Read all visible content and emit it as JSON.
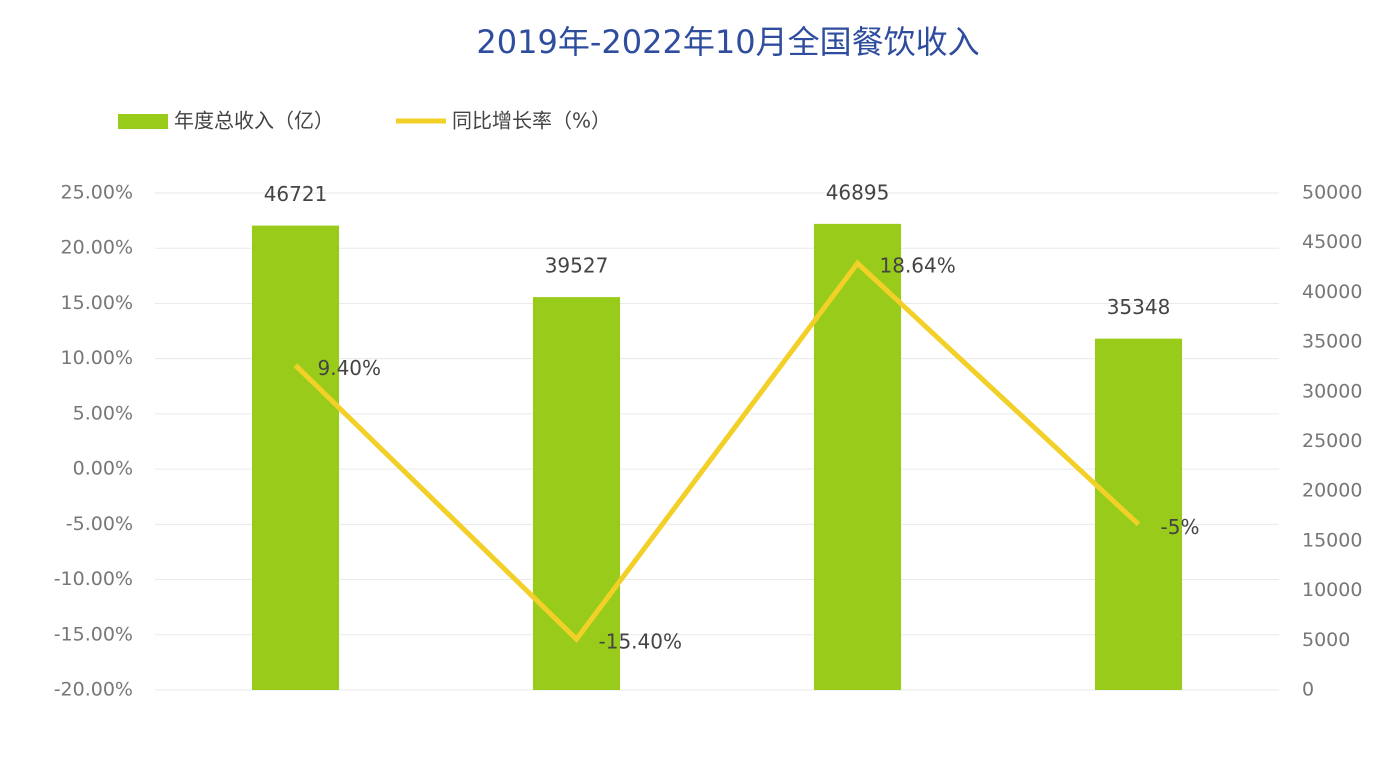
{
  "chart_data": {
    "type": "bar_line",
    "title": "2019年-2022年10月全国餐饮收入",
    "categories": [
      null,
      null,
      null,
      null
    ],
    "series": [
      {
        "name": "年度总收入（亿）",
        "type": "bar",
        "color": "#99cc1a",
        "axis": "y2",
        "values": [
          46721,
          39527,
          46895,
          35348
        ]
      },
      {
        "name": "同比增长率（%）",
        "type": "line",
        "color": "#f2d027",
        "axis": "y",
        "values": [
          9.4,
          -15.4,
          18.64,
          -5
        ],
        "value_labels": [
          "9.40%",
          "-15.40%",
          "18.64%",
          "-5%"
        ]
      }
    ],
    "ylim": [
      -20,
      25
    ],
    "yticks": [
      {
        "value": -20,
        "label": "-20.00%"
      },
      {
        "value": -15,
        "label": "-15.00%"
      },
      {
        "value": -10,
        "label": "-10.00%"
      },
      {
        "value": -5,
        "label": "-5.00%"
      },
      {
        "value": 0,
        "label": "0.00%"
      },
      {
        "value": 5,
        "label": "5.00%"
      },
      {
        "value": 10,
        "label": "10.00%"
      },
      {
        "value": 15,
        "label": "15.00%"
      },
      {
        "value": 20,
        "label": "20.00%"
      },
      {
        "value": 25,
        "label": "25.00%"
      }
    ],
    "y2lim": [
      0,
      50000
    ],
    "y2ticks": [
      0,
      5000,
      10000,
      15000,
      20000,
      25000,
      30000,
      35000,
      40000,
      45000,
      50000
    ],
    "grid": true,
    "legend": "top-left"
  }
}
